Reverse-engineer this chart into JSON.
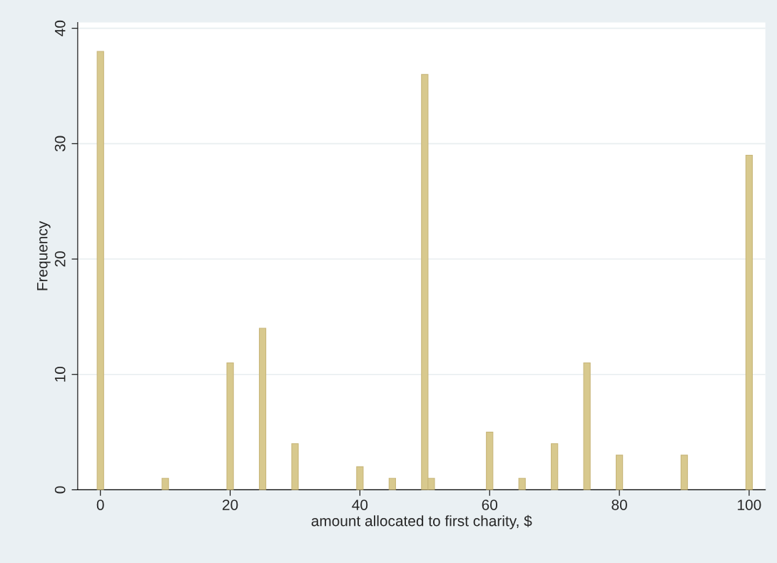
{
  "chart_data": {
    "type": "bar",
    "xlabel": "amount allocated to first charity, $",
    "ylabel": "Frequency",
    "x": [
      0,
      10,
      20,
      25,
      30,
      40,
      45,
      50,
      51,
      60,
      65,
      70,
      75,
      80,
      90,
      100
    ],
    "values": [
      38,
      1,
      11,
      14,
      4,
      2,
      1,
      36,
      1,
      5,
      1,
      4,
      11,
      3,
      3,
      29
    ],
    "color": "#d8c98e",
    "xlim": [
      -3.5,
      102.5
    ],
    "ylim": [
      0,
      40.5
    ],
    "xticks": [
      0,
      20,
      40,
      60,
      80,
      100
    ],
    "yticks": [
      0,
      10,
      20,
      30,
      40
    ],
    "grid": "y",
    "legend": false
  }
}
